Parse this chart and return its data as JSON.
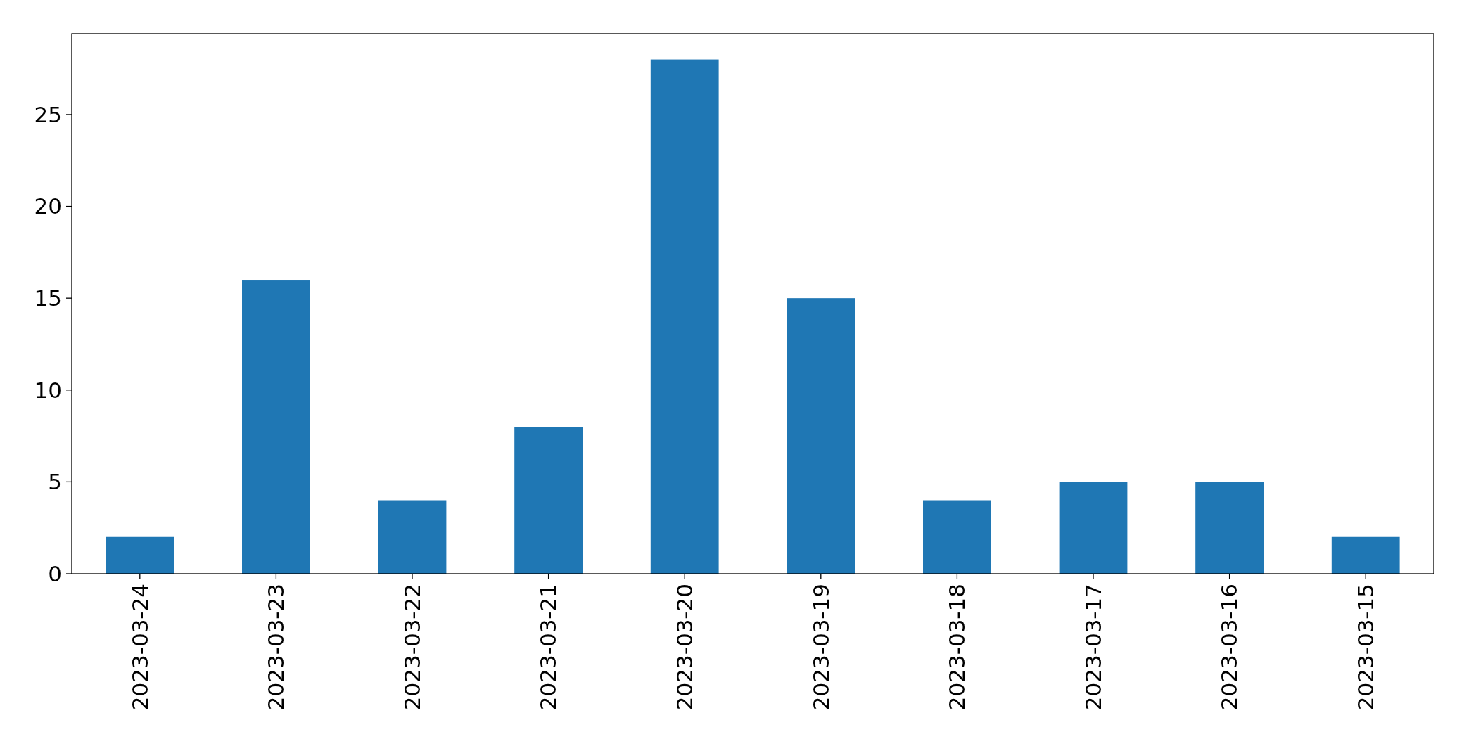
{
  "chart_data": {
    "type": "bar",
    "categories": [
      "2023-03-24",
      "2023-03-23",
      "2023-03-22",
      "2023-03-21",
      "2023-03-20",
      "2023-03-19",
      "2023-03-18",
      "2023-03-17",
      "2023-03-16",
      "2023-03-15"
    ],
    "values": [
      2,
      16,
      4,
      8,
      28,
      15,
      4,
      5,
      5,
      2
    ],
    "color": "#1f77b4",
    "ylim": [
      0,
      29.4
    ],
    "yticks": [
      0,
      5,
      10,
      15,
      20,
      25
    ],
    "grid": false
  }
}
